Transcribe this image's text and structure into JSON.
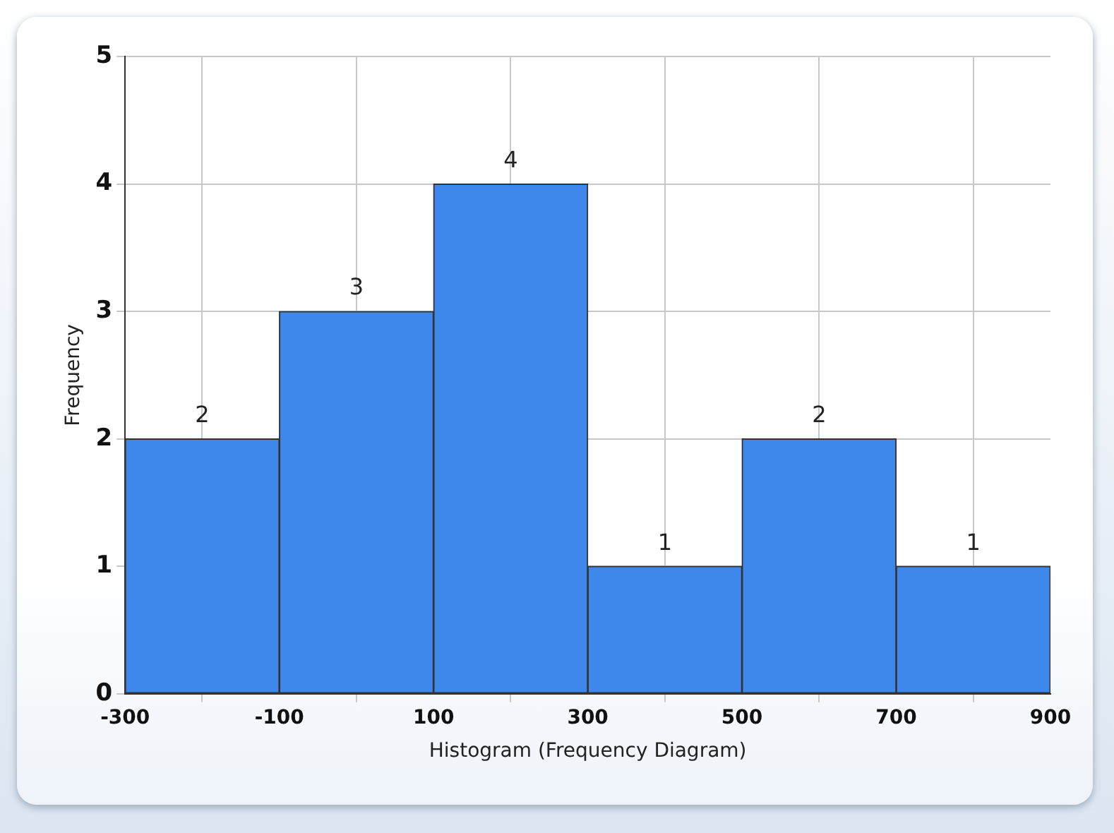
{
  "chart_data": {
    "type": "histogram",
    "xlabel": "Histogram (Frequency Diagram)",
    "ylabel": "Frequency",
    "bins": [
      -300,
      -100,
      100,
      300,
      500,
      700,
      900
    ],
    "values": [
      2,
      3,
      4,
      1,
      2,
      1
    ],
    "color": "#3f88eb",
    "xlim": [
      -300,
      900
    ],
    "xticks": [
      -300,
      -100,
      100,
      300,
      500,
      700,
      900
    ],
    "ylim": [
      0,
      5
    ],
    "yticks": [
      0,
      1,
      2,
      3,
      4,
      5
    ],
    "grid": true,
    "data_labels": true
  }
}
